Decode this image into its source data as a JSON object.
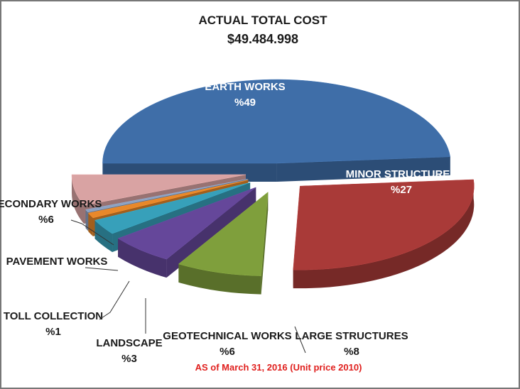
{
  "chart_data": {
    "type": "pie",
    "title": "ACTUAL TOTAL COST",
    "subtitle": "$49.484.998",
    "categories": [
      "EARTH WORKS",
      "MINOR STRUCTURES",
      "LARGE STRUCTURES",
      "GEOTECHNICAL WORKS",
      "LANDSCAPE",
      "TOLL COLLECTION",
      "PAVEMENT WORKS",
      "SECONDARY WORKS"
    ],
    "values": [
      49,
      27,
      8,
      6,
      3,
      1,
      0.5,
      6
    ],
    "value_labels": [
      "%49",
      "%27",
      "%8",
      "%6",
      "%3",
      "%1",
      null,
      "%6"
    ],
    "colors": [
      "#3f6ea8",
      "#a93a38",
      "#7f9f3c",
      "#65479a",
      "#37a0ba",
      "#e8882a",
      "#8da2c2",
      "#d9a3a3"
    ],
    "annotation": "AS of March 31, 2016 (Unit price 2010)"
  }
}
